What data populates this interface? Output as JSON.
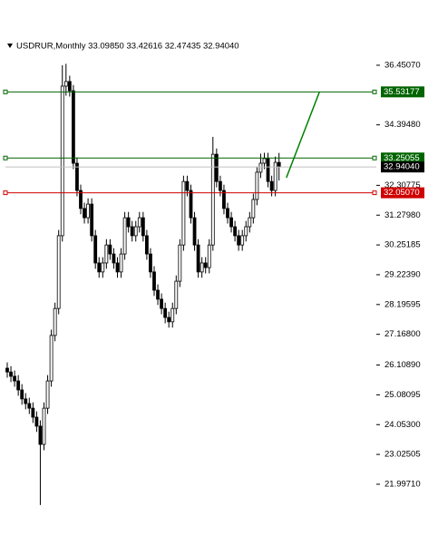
{
  "chart_data": {
    "type": "candlestick",
    "title": "USDRUR,Monthly  33.09850 33.42616 32.47435 32.94040",
    "ylim": [
      20.87,
      37.45
    ],
    "yticks": [
      {
        "value": 36.4507,
        "label": "36.45070"
      },
      {
        "value": 34.3948,
        "label": "34.39480"
      },
      32.30775,
      {
        "value": 31.2798,
        "label": "31.27980"
      },
      30.25185,
      {
        "value": 29.2239,
        "label": "29.22390"
      },
      28.19595,
      {
        "value": 27.168,
        "label": "27.16800"
      },
      {
        "value": 26.1089,
        "label": "26.10890"
      },
      25.08095,
      {
        "value": 24.053,
        "label": "24.05300"
      },
      23.02505,
      {
        "value": 21.9971,
        "label": "21.99710"
      }
    ],
    "open": [
      26.0,
      25.87,
      25.72,
      25.56,
      25.25,
      24.94,
      24.78,
      24.62,
      24.31,
      24.0,
      23.37,
      24.62,
      25.56,
      27.13,
      28.06,
      30.57,
      35.73,
      35.89,
      35.57,
      33.07,
      32.13,
      31.51,
      31.19,
      31.66,
      30.57,
      29.63,
      29.32,
      29.63,
      30.25,
      29.94,
      29.63,
      29.32,
      29.94,
      31.19,
      30.88,
      30.57,
      30.88,
      31.19,
      30.57,
      29.94,
      29.32,
      28.69,
      28.38,
      28.06,
      27.75,
      27.6,
      28.06,
      29.0,
      30.25,
      32.44,
      32.13,
      31.19,
      30.25,
      29.32,
      29.63,
      29.47,
      30.25,
      33.38,
      32.44,
      32.13,
      31.51,
      31.19,
      30.88,
      30.57,
      30.25,
      30.57,
      30.88,
      31.19,
      31.82,
      32.76,
      33.07,
      33.23,
      32.44,
      32.13,
      33.0985
    ],
    "high": [
      26.2,
      26.07,
      25.92,
      25.76,
      25.45,
      25.14,
      24.98,
      24.82,
      24.51,
      24.2,
      24.82,
      25.76,
      27.33,
      28.26,
      30.77,
      36.45,
      36.5,
      36.09,
      35.77,
      33.27,
      32.33,
      31.71,
      31.86,
      31.86,
      30.77,
      29.83,
      29.83,
      30.45,
      30.45,
      30.14,
      29.83,
      30.14,
      31.39,
      31.39,
      31.08,
      31.08,
      31.39,
      31.39,
      30.77,
      30.14,
      29.52,
      28.89,
      28.58,
      28.26,
      27.95,
      28.26,
      29.2,
      30.45,
      32.64,
      32.64,
      32.33,
      31.39,
      30.45,
      29.83,
      29.83,
      30.45,
      33.98,
      33.58,
      32.64,
      32.33,
      31.71,
      31.39,
      31.08,
      30.77,
      30.77,
      31.08,
      31.39,
      32.02,
      32.96,
      33.4,
      33.43,
      33.43,
      32.64,
      33.3,
      33.42616
    ],
    "low": [
      25.67,
      25.52,
      25.36,
      25.05,
      24.74,
      24.58,
      24.42,
      24.11,
      23.8,
      21.28,
      23.17,
      24.42,
      25.36,
      26.93,
      27.86,
      30.37,
      35.4,
      35.37,
      32.87,
      31.93,
      31.31,
      30.99,
      30.99,
      30.37,
      29.43,
      29.12,
      29.12,
      29.43,
      29.74,
      29.43,
      29.12,
      29.12,
      29.74,
      30.68,
      30.37,
      30.37,
      30.68,
      30.37,
      29.74,
      29.12,
      28.49,
      28.18,
      27.86,
      27.55,
      27.4,
      27.4,
      27.86,
      28.8,
      30.05,
      31.93,
      30.99,
      30.05,
      29.12,
      29.12,
      29.27,
      29.27,
      30.05,
      32.24,
      31.93,
      31.31,
      30.99,
      30.68,
      30.37,
      30.05,
      30.05,
      30.37,
      30.68,
      30.99,
      31.62,
      32.56,
      32.87,
      32.24,
      31.93,
      31.93,
      32.47435
    ],
    "close": [
      25.87,
      25.72,
      25.56,
      25.25,
      24.94,
      24.78,
      24.62,
      24.31,
      24.0,
      23.37,
      24.62,
      25.56,
      27.13,
      28.06,
      30.57,
      35.73,
      35.89,
      35.57,
      33.07,
      32.13,
      31.51,
      31.19,
      31.66,
      30.57,
      29.63,
      29.32,
      29.63,
      30.25,
      29.94,
      29.63,
      29.32,
      29.94,
      31.19,
      30.88,
      30.57,
      30.88,
      31.19,
      30.57,
      29.94,
      29.32,
      28.69,
      28.38,
      28.06,
      27.75,
      27.6,
      28.06,
      29.0,
      30.25,
      32.44,
      32.13,
      31.19,
      30.25,
      29.32,
      29.63,
      29.47,
      30.25,
      33.38,
      32.44,
      32.13,
      31.51,
      31.19,
      30.88,
      30.57,
      30.25,
      30.57,
      30.88,
      31.19,
      31.82,
      32.76,
      33.07,
      33.23,
      32.44,
      32.13,
      33.1,
      32.9404
    ],
    "levels": [
      {
        "value": 35.53177,
        "color": "#006400"
      },
      {
        "value": 33.25055,
        "color": "#006400"
      },
      {
        "value": 32.9404,
        "label": "32.94040",
        "color": "#000000",
        "line_color": "#c0c0c0"
      },
      {
        "value": 32.0507,
        "label": "32.05070",
        "color": "#d00000"
      }
    ],
    "trend_line": {
      "x": [
        76,
        85
      ],
      "y": [
        32.57,
        35.53
      ],
      "color": "#008000"
    }
  }
}
